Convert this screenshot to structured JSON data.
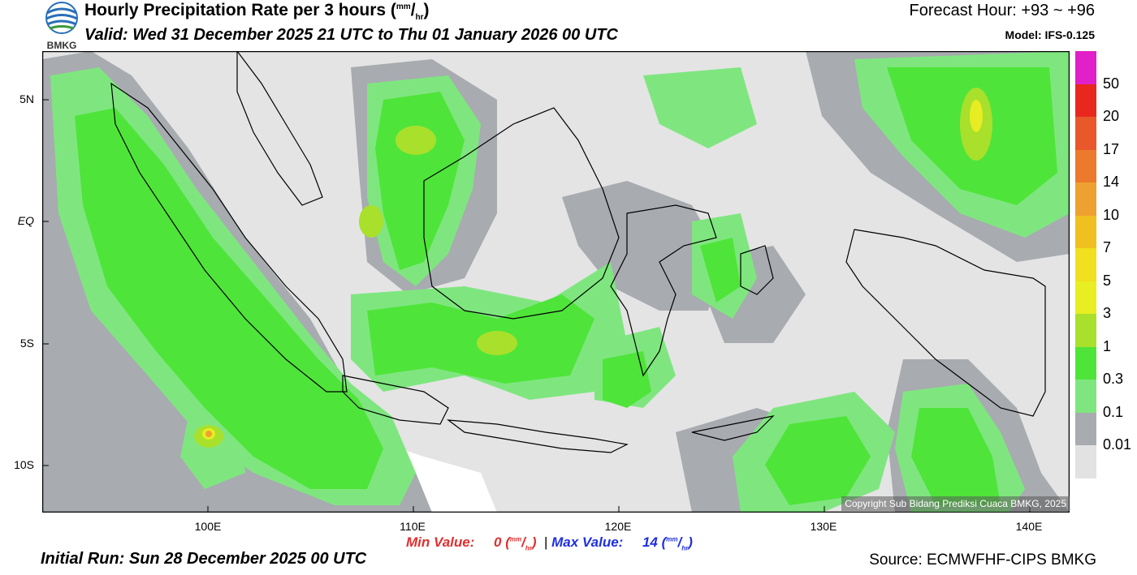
{
  "header": {
    "logo_text": "BMKG",
    "title": "Hourly Precipitation Rate per 3 hours (",
    "title_unit_sup": "mm",
    "title_unit_sub": "hr",
    "title_close": ")",
    "valid": "Valid: Wed 31 December 2025 21 UTC to Thu 01 January 2026 00 UTC",
    "forecast_hour": "Forecast Hour: +93 ~ +96",
    "model": "Model: IFS-0.125"
  },
  "map": {
    "y_labels": [
      "5N",
      "EQ",
      "5S",
      "10S"
    ],
    "x_labels": [
      "100E",
      "110E",
      "120E",
      "130E",
      "140E"
    ],
    "copyright": "Copyright Sub Bidang Prediksi Cuaca BMKG, 2025",
    "colors": {
      "sea": "#ffffff",
      "land_outline": "#000000",
      "light_rain": "#e4e4e4",
      "rain_01": "#a8abb0",
      "rain_03": "#7fe67f",
      "rain_1": "#4fe43a",
      "rain_3": "#a8e02c",
      "rain_5": "#e8ec22"
    }
  },
  "colorbar": {
    "labels": [
      "50",
      "20",
      "17",
      "14",
      "10",
      "7",
      "5",
      "3",
      "1",
      "0.3",
      "0.1",
      "0.01"
    ],
    "colors": [
      "#e020c8",
      "#e8281e",
      "#e8582a",
      "#ec7a2c",
      "#eea030",
      "#f0c020",
      "#f0e020",
      "#e8ee22",
      "#a8e02c",
      "#4fe43a",
      "#7fe67f",
      "#a8abb0",
      "#e2e2e2"
    ]
  },
  "stats": {
    "min_label": "Min Value:",
    "min_value": "0",
    "separator": "|",
    "max_label": "Max Value:",
    "max_value": "14",
    "unit_sup": "mm",
    "unit_sub": "hr",
    "min_color": "#e03030",
    "max_color": "#2030e0"
  },
  "footer": {
    "initial_run": "Initial Run: Sun 28 December 2025 00 UTC",
    "source": "Source: ECMWFHF-CIPS BMKG"
  }
}
